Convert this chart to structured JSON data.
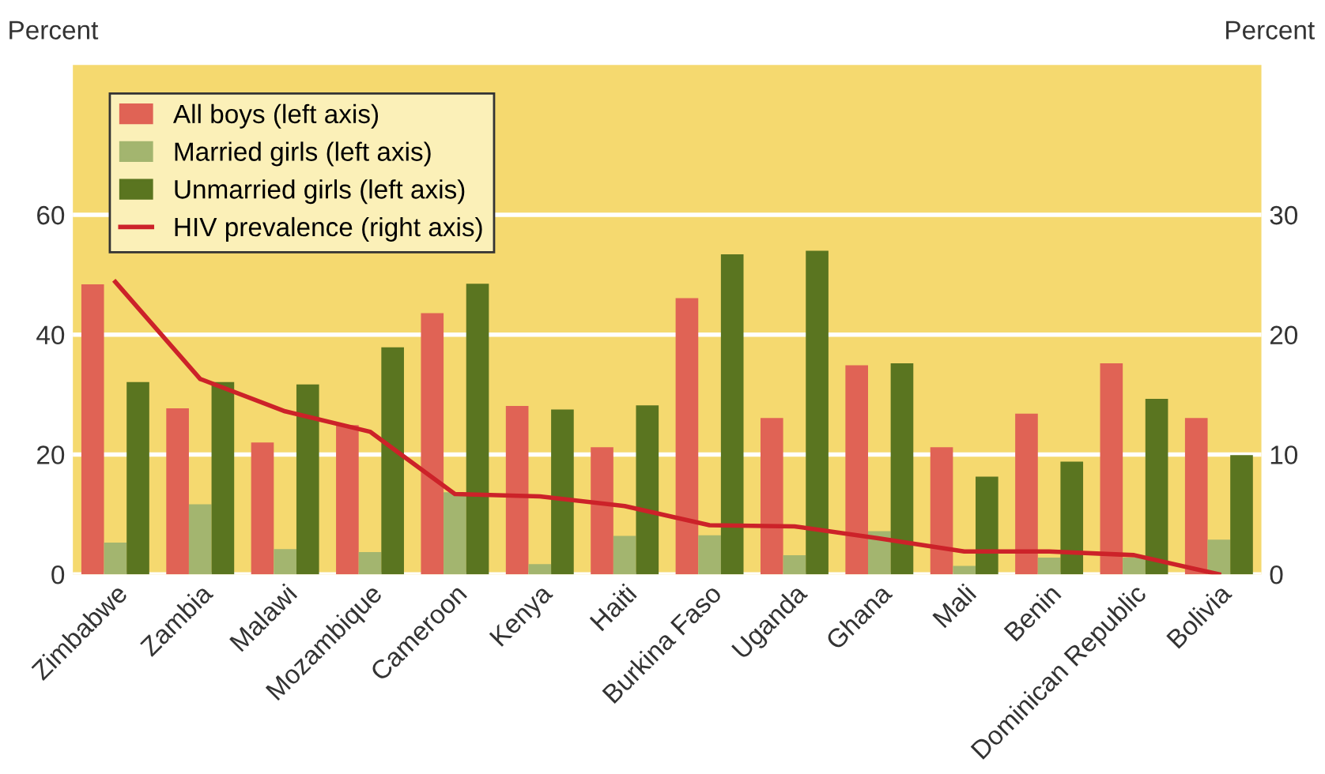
{
  "chart_data": {
    "type": "bar",
    "ylabel": "Percent",
    "y2label": "Percent",
    "categories": [
      "Zimbabwe",
      "Zambia",
      "Malawi",
      "Mozambique",
      "Cameroon",
      "Kenya",
      "Haiti",
      "Burkina Faso",
      "Uganda",
      "Ghana",
      "Mali",
      "Benin",
      "Dominican Republic",
      "Bolivia"
    ],
    "series": [
      {
        "name": "All boys (left axis)",
        "color": "#e06355",
        "values": [
          48.4,
          27.7,
          22.0,
          24.9,
          43.6,
          28.1,
          21.2,
          46.1,
          26.1,
          34.9,
          21.2,
          26.8,
          35.2,
          26.1
        ]
      },
      {
        "name": "Married girls (left axis)",
        "color": "#a3b56f",
        "values": [
          5.3,
          11.7,
          4.2,
          3.7,
          13.7,
          1.7,
          6.4,
          6.5,
          3.2,
          7.2,
          1.4,
          2.8,
          2.8,
          5.8
        ]
      },
      {
        "name": "Unmarried girls (left axis)",
        "color": "#5a7520",
        "values": [
          32.1,
          32.1,
          31.7,
          37.9,
          48.5,
          27.5,
          28.2,
          53.4,
          54.0,
          35.2,
          16.3,
          18.8,
          29.3,
          19.9
        ]
      },
      {
        "name": "HIV prevalence (right axis)",
        "color": "#cc2229",
        "type": "line",
        "axis": "y2",
        "values": [
          24.4,
          16.3,
          13.6,
          11.9,
          6.7,
          6.5,
          5.7,
          4.1,
          4.0,
          3.0,
          1.9,
          1.9,
          1.6,
          0.0
        ]
      }
    ],
    "ylim": [
      0,
      85
    ],
    "yticks": [
      0,
      20,
      40,
      60
    ],
    "y2lim": [
      0,
      42.5
    ],
    "y2ticks": [
      0,
      10,
      20,
      30
    ],
    "grid": "y",
    "legend": "top left"
  }
}
